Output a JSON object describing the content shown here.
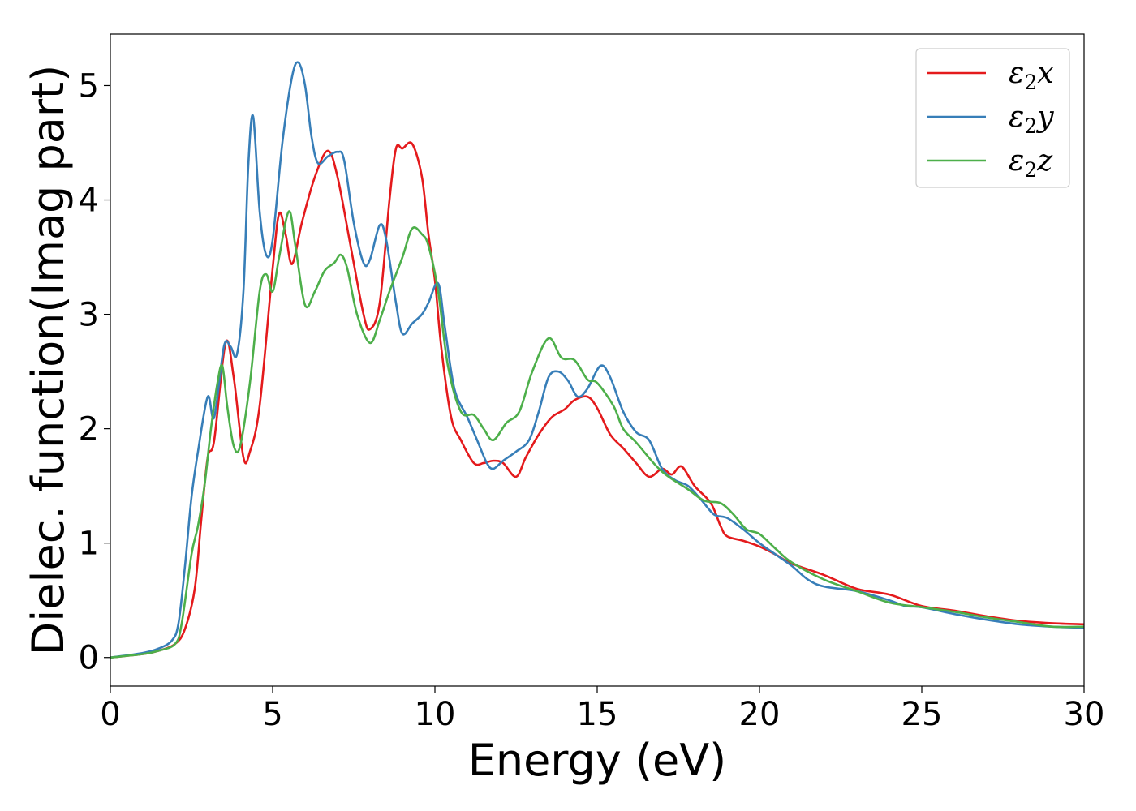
{
  "chart_data": {
    "type": "line",
    "xlabel": "Energy (eV)",
    "ylabel": "Dielec. function(Imag part)",
    "xlim": [
      0,
      30
    ],
    "ylim": [
      -0.25,
      5.45
    ],
    "xticks": [
      0,
      5,
      10,
      15,
      20,
      25,
      30
    ],
    "yticks": [
      0,
      1,
      2,
      3,
      4,
      5
    ],
    "grid": false,
    "legend_position": "top-right",
    "series": [
      {
        "name": "ε₂x",
        "name_base": "ε",
        "name_sub": "2",
        "name_tail": "x",
        "color": "#e41a1c",
        "points": [
          [
            0,
            0
          ],
          [
            1,
            0.03
          ],
          [
            1.5,
            0.06
          ],
          [
            2,
            0.12
          ],
          [
            2.3,
            0.25
          ],
          [
            2.6,
            0.6
          ],
          [
            2.8,
            1.2
          ],
          [
            3.0,
            1.75
          ],
          [
            3.2,
            1.9
          ],
          [
            3.55,
            2.75
          ],
          [
            3.8,
            2.45
          ],
          [
            4.1,
            1.75
          ],
          [
            4.3,
            1.8
          ],
          [
            4.6,
            2.2
          ],
          [
            5.0,
            3.4
          ],
          [
            5.2,
            3.88
          ],
          [
            5.4,
            3.7
          ],
          [
            5.6,
            3.44
          ],
          [
            5.9,
            3.8
          ],
          [
            6.3,
            4.2
          ],
          [
            6.7,
            4.43
          ],
          [
            7.0,
            4.2
          ],
          [
            7.4,
            3.6
          ],
          [
            7.8,
            3.0
          ],
          [
            8.0,
            2.87
          ],
          [
            8.3,
            3.1
          ],
          [
            8.6,
            4.0
          ],
          [
            8.8,
            4.45
          ],
          [
            9.0,
            4.45
          ],
          [
            9.3,
            4.49
          ],
          [
            9.6,
            4.2
          ],
          [
            9.8,
            3.7
          ],
          [
            10.0,
            3.3
          ],
          [
            10.2,
            2.7
          ],
          [
            10.5,
            2.1
          ],
          [
            10.8,
            1.9
          ],
          [
            11.2,
            1.7
          ],
          [
            11.5,
            1.7
          ],
          [
            11.8,
            1.72
          ],
          [
            12.1,
            1.7
          ],
          [
            12.5,
            1.58
          ],
          [
            12.8,
            1.75
          ],
          [
            13.2,
            1.95
          ],
          [
            13.6,
            2.1
          ],
          [
            14.0,
            2.17
          ],
          [
            14.3,
            2.25
          ],
          [
            14.7,
            2.28
          ],
          [
            15.0,
            2.18
          ],
          [
            15.4,
            1.95
          ],
          [
            15.8,
            1.83
          ],
          [
            16.2,
            1.7
          ],
          [
            16.6,
            1.58
          ],
          [
            17.0,
            1.65
          ],
          [
            17.3,
            1.6
          ],
          [
            17.6,
            1.67
          ],
          [
            18.0,
            1.5
          ],
          [
            18.5,
            1.35
          ],
          [
            18.8,
            1.15
          ],
          [
            19.0,
            1.06
          ],
          [
            19.5,
            1.02
          ],
          [
            20.0,
            0.97
          ],
          [
            20.5,
            0.9
          ],
          [
            21.0,
            0.82
          ],
          [
            22.0,
            0.72
          ],
          [
            23.0,
            0.6
          ],
          [
            24.0,
            0.55
          ],
          [
            25.0,
            0.45
          ],
          [
            26.0,
            0.41
          ],
          [
            27.0,
            0.36
          ],
          [
            28.0,
            0.32
          ],
          [
            29.0,
            0.3
          ],
          [
            30.0,
            0.29
          ]
        ]
      },
      {
        "name": "ε₂y",
        "name_base": "ε",
        "name_sub": "2",
        "name_tail": "y",
        "color": "#377eb8",
        "points": [
          [
            0,
            0
          ],
          [
            1,
            0.04
          ],
          [
            1.5,
            0.08
          ],
          [
            1.9,
            0.15
          ],
          [
            2.1,
            0.3
          ],
          [
            2.3,
            0.8
          ],
          [
            2.5,
            1.4
          ],
          [
            2.7,
            1.8
          ],
          [
            3.0,
            2.28
          ],
          [
            3.2,
            2.1
          ],
          [
            3.5,
            2.72
          ],
          [
            3.7,
            2.72
          ],
          [
            3.9,
            2.65
          ],
          [
            4.1,
            3.2
          ],
          [
            4.25,
            4.3
          ],
          [
            4.4,
            4.73
          ],
          [
            4.6,
            3.9
          ],
          [
            4.8,
            3.52
          ],
          [
            5.0,
            3.65
          ],
          [
            5.3,
            4.5
          ],
          [
            5.6,
            5.08
          ],
          [
            5.8,
            5.2
          ],
          [
            6.0,
            5.0
          ],
          [
            6.2,
            4.55
          ],
          [
            6.4,
            4.32
          ],
          [
            6.7,
            4.38
          ],
          [
            7.0,
            4.42
          ],
          [
            7.2,
            4.35
          ],
          [
            7.5,
            3.8
          ],
          [
            7.8,
            3.45
          ],
          [
            8.0,
            3.48
          ],
          [
            8.3,
            3.78
          ],
          [
            8.5,
            3.65
          ],
          [
            8.8,
            3.1
          ],
          [
            9.0,
            2.83
          ],
          [
            9.3,
            2.92
          ],
          [
            9.6,
            3.0
          ],
          [
            9.8,
            3.1
          ],
          [
            10.1,
            3.27
          ],
          [
            10.3,
            2.9
          ],
          [
            10.6,
            2.35
          ],
          [
            11.0,
            2.1
          ],
          [
            11.3,
            1.9
          ],
          [
            11.6,
            1.7
          ],
          [
            11.8,
            1.65
          ],
          [
            12.1,
            1.72
          ],
          [
            12.5,
            1.8
          ],
          [
            12.9,
            1.9
          ],
          [
            13.2,
            2.15
          ],
          [
            13.5,
            2.45
          ],
          [
            13.8,
            2.5
          ],
          [
            14.1,
            2.42
          ],
          [
            14.4,
            2.28
          ],
          [
            14.7,
            2.35
          ],
          [
            15.1,
            2.55
          ],
          [
            15.4,
            2.45
          ],
          [
            15.8,
            2.15
          ],
          [
            16.2,
            1.97
          ],
          [
            16.6,
            1.9
          ],
          [
            17.0,
            1.65
          ],
          [
            17.4,
            1.55
          ],
          [
            17.8,
            1.5
          ],
          [
            18.2,
            1.38
          ],
          [
            18.6,
            1.25
          ],
          [
            19.0,
            1.22
          ],
          [
            19.5,
            1.12
          ],
          [
            20.0,
            1.0
          ],
          [
            20.5,
            0.9
          ],
          [
            21.0,
            0.8
          ],
          [
            21.5,
            0.68
          ],
          [
            22.0,
            0.62
          ],
          [
            23.0,
            0.58
          ],
          [
            24.0,
            0.5
          ],
          [
            24.5,
            0.45
          ],
          [
            25.0,
            0.44
          ],
          [
            26.0,
            0.38
          ],
          [
            27.0,
            0.33
          ],
          [
            28.0,
            0.29
          ],
          [
            29.0,
            0.27
          ],
          [
            30.0,
            0.26
          ]
        ]
      },
      {
        "name": "ε₂z",
        "name_base": "ε",
        "name_sub": "2",
        "name_tail": "z",
        "color": "#4daf4a",
        "points": [
          [
            0,
            0
          ],
          [
            1,
            0.03
          ],
          [
            1.5,
            0.06
          ],
          [
            2,
            0.12
          ],
          [
            2.2,
            0.3
          ],
          [
            2.5,
            0.9
          ],
          [
            2.7,
            1.15
          ],
          [
            2.9,
            1.5
          ],
          [
            3.1,
            2.0
          ],
          [
            3.3,
            2.4
          ],
          [
            3.45,
            2.55
          ],
          [
            3.6,
            2.2
          ],
          [
            3.8,
            1.85
          ],
          [
            4.0,
            1.85
          ],
          [
            4.3,
            2.4
          ],
          [
            4.6,
            3.2
          ],
          [
            4.8,
            3.35
          ],
          [
            5.0,
            3.2
          ],
          [
            5.2,
            3.5
          ],
          [
            5.5,
            3.9
          ],
          [
            5.7,
            3.6
          ],
          [
            6.0,
            3.08
          ],
          [
            6.3,
            3.2
          ],
          [
            6.6,
            3.38
          ],
          [
            6.9,
            3.45
          ],
          [
            7.1,
            3.52
          ],
          [
            7.3,
            3.4
          ],
          [
            7.6,
            3.0
          ],
          [
            8.0,
            2.75
          ],
          [
            8.3,
            2.95
          ],
          [
            8.6,
            3.2
          ],
          [
            9.0,
            3.5
          ],
          [
            9.3,
            3.75
          ],
          [
            9.6,
            3.7
          ],
          [
            9.8,
            3.6
          ],
          [
            10.1,
            3.2
          ],
          [
            10.4,
            2.55
          ],
          [
            10.8,
            2.15
          ],
          [
            11.2,
            2.12
          ],
          [
            11.5,
            2.0
          ],
          [
            11.8,
            1.9
          ],
          [
            12.2,
            2.05
          ],
          [
            12.6,
            2.15
          ],
          [
            13.0,
            2.5
          ],
          [
            13.5,
            2.79
          ],
          [
            13.9,
            2.62
          ],
          [
            14.3,
            2.6
          ],
          [
            14.7,
            2.43
          ],
          [
            15.0,
            2.4
          ],
          [
            15.5,
            2.2
          ],
          [
            15.8,
            2.0
          ],
          [
            16.2,
            1.88
          ],
          [
            16.8,
            1.68
          ],
          [
            17.2,
            1.58
          ],
          [
            17.8,
            1.47
          ],
          [
            18.3,
            1.37
          ],
          [
            18.8,
            1.35
          ],
          [
            19.2,
            1.25
          ],
          [
            19.6,
            1.12
          ],
          [
            20.0,
            1.08
          ],
          [
            20.5,
            0.95
          ],
          [
            21.0,
            0.83
          ],
          [
            22.0,
            0.68
          ],
          [
            23.0,
            0.58
          ],
          [
            24.0,
            0.48
          ],
          [
            25.0,
            0.44
          ],
          [
            26.0,
            0.4
          ],
          [
            27.0,
            0.35
          ],
          [
            28.0,
            0.31
          ],
          [
            29.0,
            0.27
          ],
          [
            30.0,
            0.27
          ]
        ]
      }
    ]
  }
}
